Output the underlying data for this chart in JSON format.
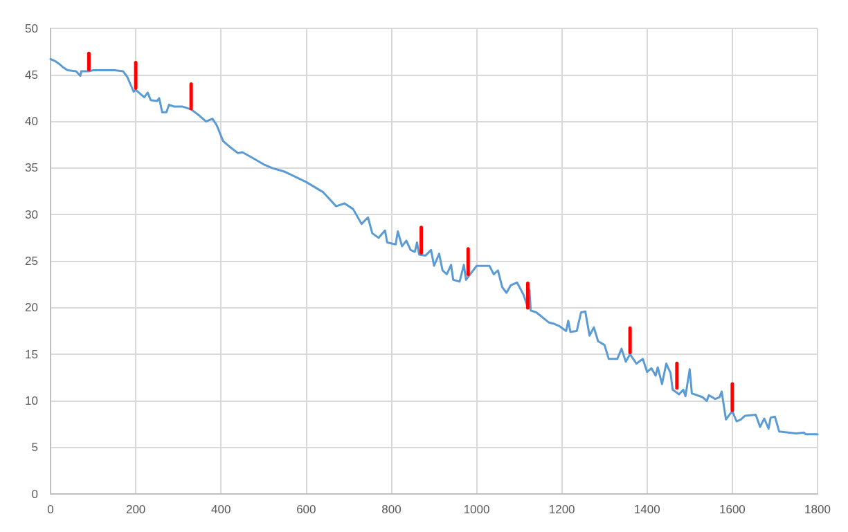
{
  "chart_data": {
    "type": "line",
    "grid": true,
    "xlim": [
      0,
      1800
    ],
    "xticks": [
      0,
      200,
      400,
      600,
      800,
      1000,
      1200,
      1400,
      1600,
      1800
    ],
    "ylim": [
      0,
      50
    ],
    "yticks": [
      0,
      5,
      10,
      15,
      20,
      25,
      30,
      35,
      40,
      45,
      50
    ],
    "series": [
      {
        "color": "#5b9bd5",
        "x": [
          0,
          10,
          20,
          30,
          40,
          60,
          70,
          72,
          90,
          100,
          150,
          170,
          180,
          195,
          200,
          220,
          228,
          235,
          250,
          255,
          262,
          272,
          278,
          290,
          310,
          330,
          350,
          365,
          380,
          390,
          405,
          420,
          440,
          450,
          470,
          500,
          520,
          550,
          600,
          640,
          670,
          690,
          710,
          730,
          745,
          755,
          770,
          785,
          790,
          810,
          815,
          825,
          835,
          845,
          855,
          860,
          865,
          880,
          893,
          900,
          912,
          920,
          930,
          940,
          945,
          960,
          970,
          975,
          985,
          1000,
          1030,
          1040,
          1050,
          1060,
          1070,
          1080,
          1095,
          1110,
          1118,
          1124,
          1127,
          1140,
          1170,
          1180,
          1195,
          1210,
          1215,
          1220,
          1235,
          1245,
          1255,
          1265,
          1275,
          1285,
          1300,
          1310,
          1330,
          1340,
          1350,
          1360,
          1375,
          1390,
          1400,
          1410,
          1420,
          1425,
          1435,
          1445,
          1455,
          1460,
          1475,
          1485,
          1490,
          1500,
          1505,
          1530,
          1540,
          1545,
          1560,
          1570,
          1575,
          1585,
          1600,
          1610,
          1620,
          1630,
          1655,
          1665,
          1675,
          1685,
          1690,
          1700,
          1710,
          1750,
          1768,
          1772,
          1800
        ],
        "values": [
          46.7,
          46.5,
          46.2,
          45.8,
          45.5,
          45.4,
          44.9,
          45.4,
          45.4,
          45.5,
          45.5,
          45.4,
          44.8,
          43.2,
          43.4,
          42.6,
          43.1,
          42.3,
          42.2,
          42.5,
          41.0,
          41.0,
          41.8,
          41.6,
          41.6,
          41.3,
          40.6,
          40.0,
          40.3,
          39.6,
          37.9,
          37.3,
          36.6,
          36.7,
          36.2,
          35.4,
          35.0,
          34.6,
          33.5,
          32.4,
          30.9,
          31.2,
          30.6,
          29.0,
          29.7,
          28.0,
          27.5,
          28.3,
          27.0,
          26.8,
          28.2,
          26.6,
          27.2,
          26.2,
          26.0,
          27.0,
          25.7,
          25.6,
          26.2,
          24.5,
          25.8,
          24.0,
          23.6,
          24.6,
          23.0,
          22.8,
          24.6,
          23.0,
          23.6,
          24.5,
          24.5,
          23.6,
          24.0,
          22.2,
          21.6,
          22.4,
          22.7,
          21.4,
          20.3,
          21.9,
          19.7,
          19.5,
          18.4,
          18.3,
          18.0,
          17.5,
          18.6,
          17.4,
          17.5,
          19.5,
          19.6,
          17.0,
          17.9,
          16.4,
          16.0,
          14.5,
          14.5,
          15.6,
          14.2,
          15.0,
          14.0,
          14.5,
          13.1,
          13.5,
          12.7,
          13.6,
          11.8,
          14.0,
          13.0,
          11.2,
          10.7,
          11.2,
          10.5,
          13.4,
          10.8,
          10.4,
          10.0,
          10.6,
          10.2,
          10.4,
          11.0,
          8.0,
          8.9,
          7.8,
          8.0,
          8.4,
          8.5,
          7.2,
          8.1,
          7.0,
          8.2,
          8.3,
          6.7,
          6.5,
          6.6,
          6.4,
          6.4
        ]
      },
      {
        "type": "bar",
        "color": "#ff0000",
        "x": [
          90,
          200,
          330,
          870,
          980,
          1120,
          1360,
          1470,
          1600
        ],
        "base": [
          45.4,
          43.4,
          41.2,
          25.7,
          23.4,
          19.8,
          15.0,
          11.2,
          8.8
        ],
        "values": [
          2.1,
          3.1,
          3.0,
          3.1,
          3.1,
          3.0,
          3.0,
          3.0,
          3.2
        ]
      }
    ]
  }
}
